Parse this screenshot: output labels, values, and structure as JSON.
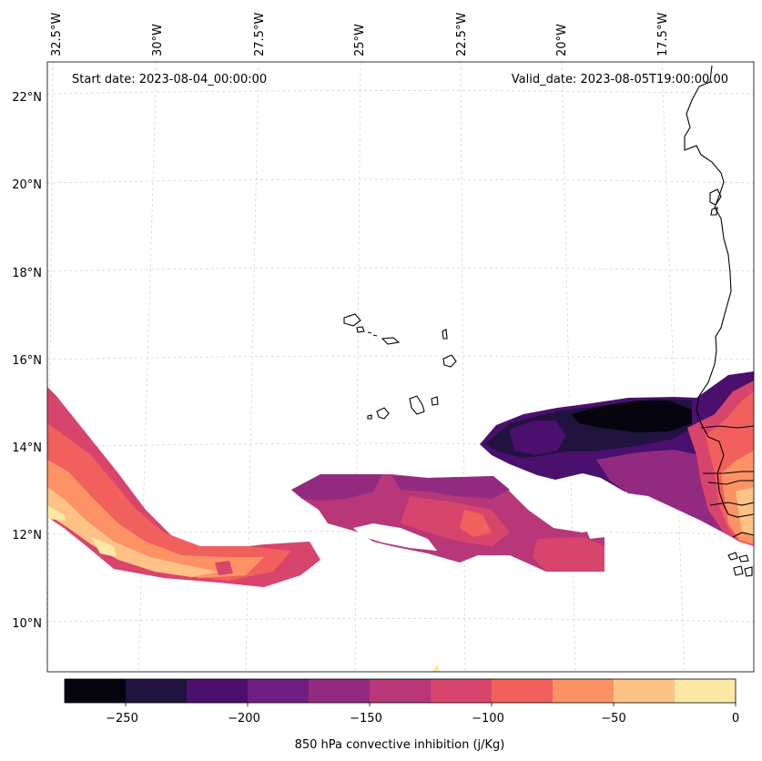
{
  "header": {
    "start_date": "Start date: 2023-08-04_00:00:00",
    "valid_date": "Valid_date: 2023-08-05T19:00:00.00"
  },
  "axes": {
    "lon_labels": [
      "32.5°W",
      "30°W",
      "27.5°W",
      "25°W",
      "22.5°W",
      "20°W",
      "17.5°W"
    ],
    "lat_labels": [
      "22°N",
      "20°N",
      "18°N",
      "16°N",
      "14°N",
      "12°N",
      "10°N"
    ]
  },
  "colorbar": {
    "label": "850 hPa convective inhibition (j/Kg)",
    "tick_labels": [
      "−250",
      "−200",
      "−150",
      "−100",
      "−50",
      "0"
    ],
    "levels": [
      -275,
      -250,
      -225,
      -200,
      -175,
      -150,
      -125,
      -100,
      -75,
      -50,
      -25,
      0
    ],
    "colors": [
      "#05040f",
      "#211340",
      "#4b0f6e",
      "#6f1f81",
      "#922b80",
      "#b73779",
      "#d8456c",
      "#f1605d",
      "#fd9365",
      "#fec287",
      "#fde8a6"
    ]
  },
  "colors": {
    "land_outline": "#000000",
    "gridline": "#d0d0d0"
  }
}
